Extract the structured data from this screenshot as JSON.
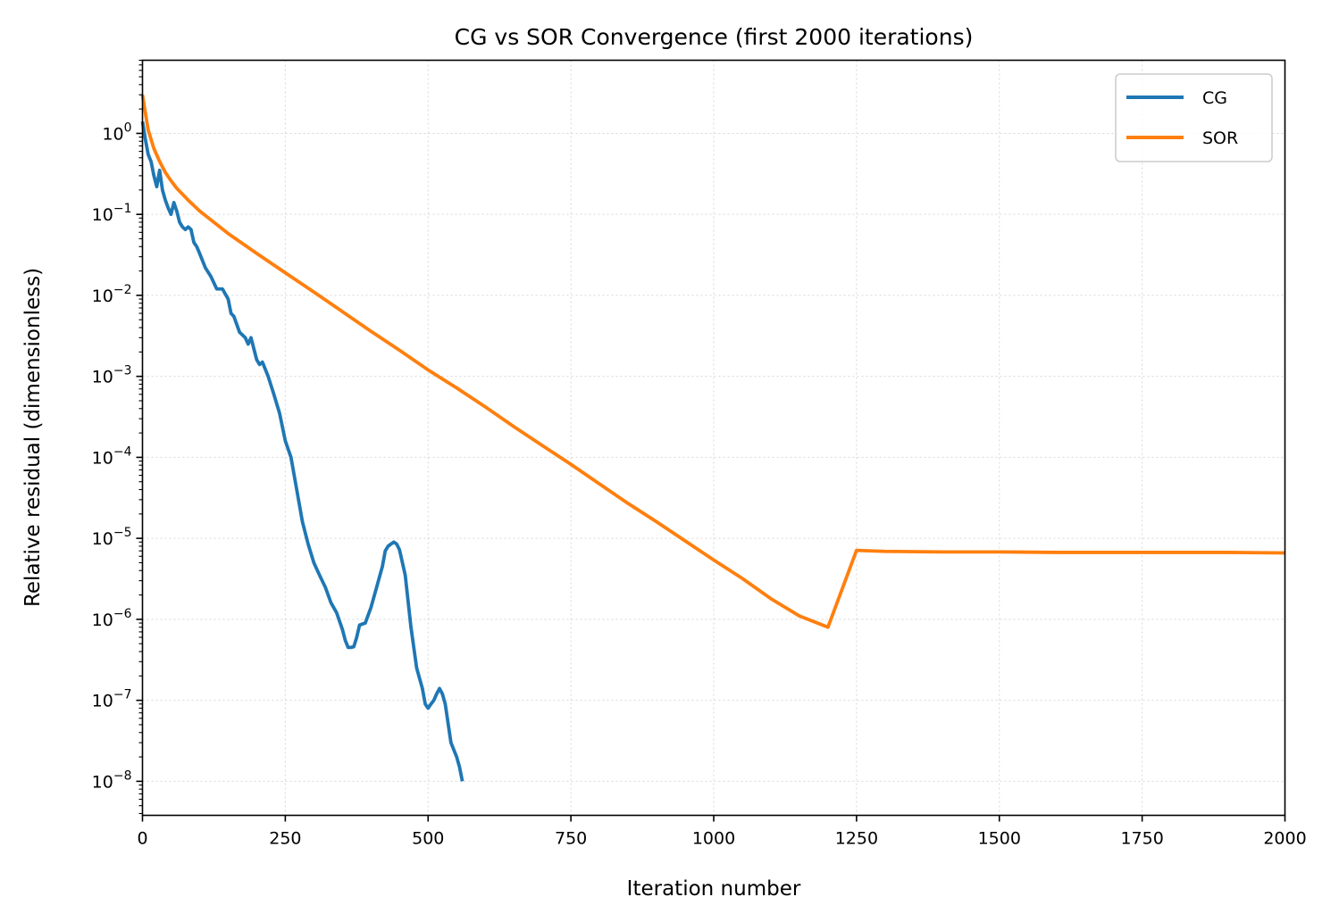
{
  "chart_data": {
    "type": "line",
    "title": "CG vs SOR Convergence (first 2000 iterations)",
    "xlabel": "Iteration number",
    "ylabel": "Relative residual (dimensionless)",
    "xlim": [
      0,
      2000
    ],
    "ylim": [
      3.8e-09,
      8
    ],
    "yscale": "log",
    "grid": true,
    "legend_position": "top-right",
    "x_ticks": [
      0,
      250,
      500,
      750,
      1000,
      1250,
      1500,
      1750,
      2000
    ],
    "x_tick_labels": [
      "0",
      "250",
      "500",
      "750",
      "1000",
      "1250",
      "1500",
      "1750",
      "2000"
    ],
    "y_ticks": [
      {
        "value": 1,
        "base": "10",
        "exp": "0"
      },
      {
        "value": 0.1,
        "base": "10",
        "exp": "−1"
      },
      {
        "value": 0.01,
        "base": "10",
        "exp": "−2"
      },
      {
        "value": 0.001,
        "base": "10",
        "exp": "−3"
      },
      {
        "value": 0.0001,
        "base": "10",
        "exp": "−4"
      },
      {
        "value": 1e-05,
        "base": "10",
        "exp": "−5"
      },
      {
        "value": 1e-06,
        "base": "10",
        "exp": "−6"
      },
      {
        "value": 1e-07,
        "base": "10",
        "exp": "−7"
      },
      {
        "value": 1e-08,
        "base": "10",
        "exp": "−8"
      }
    ],
    "series": [
      {
        "name": "CG",
        "color": "#1f77b4",
        "x": [
          0,
          5,
          10,
          15,
          20,
          25,
          30,
          35,
          40,
          45,
          50,
          55,
          60,
          65,
          70,
          75,
          80,
          85,
          90,
          95,
          100,
          110,
          120,
          130,
          140,
          150,
          155,
          160,
          170,
          180,
          185,
          190,
          200,
          205,
          210,
          220,
          230,
          240,
          250,
          260,
          270,
          280,
          290,
          300,
          310,
          320,
          330,
          340,
          350,
          355,
          360,
          365,
          370,
          375,
          380,
          390,
          400,
          410,
          420,
          425,
          430,
          435,
          440,
          445,
          450,
          460,
          470,
          480,
          490,
          495,
          500,
          505,
          510,
          515,
          520,
          525,
          530,
          540,
          550,
          555,
          560
        ],
        "y": [
          1.4,
          0.85,
          0.55,
          0.45,
          0.3,
          0.22,
          0.35,
          0.2,
          0.15,
          0.12,
          0.1,
          0.14,
          0.11,
          0.08,
          0.07,
          0.065,
          0.07,
          0.065,
          0.045,
          0.04,
          0.033,
          0.022,
          0.017,
          0.012,
          0.012,
          0.009,
          0.006,
          0.0055,
          0.0035,
          0.003,
          0.0025,
          0.003,
          0.0016,
          0.0014,
          0.0015,
          0.001,
          0.0006,
          0.00035,
          0.00016,
          0.0001,
          4e-05,
          1.6e-05,
          8.5e-06,
          5e-06,
          3.5e-06,
          2.5e-06,
          1.6e-06,
          1.2e-06,
          7.5e-07,
          5.5e-07,
          4.5e-07,
          4.5e-07,
          4.6e-07,
          6e-07,
          8.5e-07,
          9e-07,
          1.4e-06,
          2.5e-06,
          4.5e-06,
          7e-06,
          8e-06,
          8.5e-06,
          9e-06,
          8.5e-06,
          7.2e-06,
          3.5e-06,
          8e-07,
          2.5e-07,
          1.4e-07,
          9e-08,
          8e-08,
          9e-08,
          1e-07,
          1.2e-07,
          1.4e-07,
          1.2e-07,
          9e-08,
          3e-08,
          2e-08,
          1.5e-08,
          1e-08
        ]
      },
      {
        "name": "SOR",
        "color": "#ff7f0e",
        "x": [
          0,
          5,
          10,
          20,
          30,
          40,
          50,
          60,
          80,
          100,
          125,
          150,
          200,
          250,
          300,
          350,
          400,
          450,
          500,
          550,
          600,
          650,
          700,
          750,
          800,
          850,
          900,
          950,
          1000,
          1050,
          1100,
          1150,
          1200,
          1250,
          1300,
          1400,
          1500,
          1600,
          1700,
          1800,
          1900,
          2000
        ],
        "y": [
          3.0,
          1.8,
          1.1,
          0.65,
          0.45,
          0.33,
          0.26,
          0.21,
          0.15,
          0.11,
          0.08,
          0.058,
          0.033,
          0.019,
          0.011,
          0.0063,
          0.0036,
          0.0021,
          0.0012,
          0.00072,
          0.00042,
          0.00024,
          0.00014,
          8.2e-05,
          4.7e-05,
          2.7e-05,
          1.6e-05,
          9.3e-06,
          5.4e-06,
          3.2e-06,
          1.8e-06,
          1.1e-06,
          8e-07,
          7.1e-06,
          6.9e-06,
          6.8e-06,
          6.8e-06,
          6.7e-06,
          6.7e-06,
          6.7e-06,
          6.7e-06,
          6.6e-06
        ]
      }
    ]
  }
}
